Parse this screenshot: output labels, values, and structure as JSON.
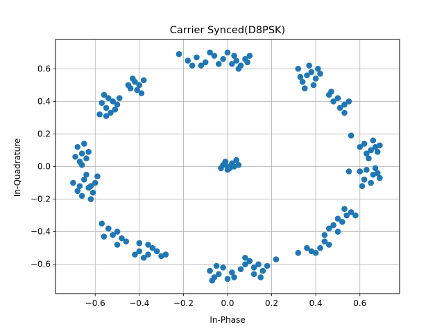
{
  "chart_data": {
    "type": "scatter",
    "title": "Carrier Synced(D8PSK)",
    "xlabel": "In-Phase",
    "ylabel": "In-Quadrature",
    "xlim": [
      -0.78,
      0.78
    ],
    "ylim": [
      -0.78,
      0.78
    ],
    "xticks": [
      -0.6,
      -0.4,
      -0.2,
      0.0,
      0.2,
      0.4,
      0.6
    ],
    "yticks": [
      -0.6,
      -0.4,
      -0.2,
      0.0,
      0.2,
      0.4,
      0.6
    ],
    "xtick_labels": [
      "−0.6",
      "−0.4",
      "−0.2",
      "0.0",
      "0.2",
      "0.4",
      "0.6"
    ],
    "ytick_labels": [
      "−0.6",
      "−0.4",
      "−0.2",
      "0.0",
      "0.2",
      "0.4",
      "0.6"
    ],
    "grid": true,
    "marker_color": "#1f77b4",
    "points": [
      [
        -0.68,
        0.12
      ],
      [
        -0.66,
        0.08
      ],
      [
        -0.64,
        0.05
      ],
      [
        -0.67,
        0.03
      ],
      [
        -0.65,
        0.14
      ],
      [
        -0.63,
        0.09
      ],
      [
        -0.69,
        0.06
      ],
      [
        -0.66,
        0.01
      ],
      [
        -0.65,
        -0.08
      ],
      [
        -0.62,
        -0.12
      ],
      [
        -0.68,
        -0.15
      ],
      [
        -0.6,
        -0.1
      ],
      [
        -0.64,
        -0.05
      ],
      [
        -0.66,
        -0.18
      ],
      [
        -0.61,
        -0.16
      ],
      [
        -0.7,
        -0.1
      ],
      [
        -0.63,
        -0.13
      ],
      [
        -0.59,
        -0.06
      ],
      [
        -0.67,
        -0.12
      ],
      [
        -0.62,
        -0.2
      ],
      [
        -0.58,
        0.32
      ],
      [
        -0.55,
        0.36
      ],
      [
        -0.52,
        0.4
      ],
      [
        -0.56,
        0.44
      ],
      [
        -0.5,
        0.38
      ],
      [
        -0.53,
        0.33
      ],
      [
        -0.57,
        0.39
      ],
      [
        -0.54,
        0.42
      ],
      [
        -0.51,
        0.35
      ],
      [
        -0.49,
        0.42
      ],
      [
        -0.55,
        0.31
      ],
      [
        -0.44,
        0.48
      ],
      [
        -0.42,
        0.52
      ],
      [
        -0.4,
        0.5
      ],
      [
        -0.38,
        0.53
      ],
      [
        -0.45,
        0.5
      ],
      [
        -0.41,
        0.47
      ],
      [
        -0.39,
        0.45
      ],
      [
        -0.43,
        0.54
      ],
      [
        -0.18,
        0.65
      ],
      [
        -0.14,
        0.67
      ],
      [
        -0.1,
        0.64
      ],
      [
        -0.06,
        0.68
      ],
      [
        -0.02,
        0.66
      ],
      [
        -0.12,
        0.62
      ],
      [
        -0.08,
        0.7
      ],
      [
        -0.04,
        0.63
      ],
      [
        -0.16,
        0.62
      ],
      [
        0.0,
        0.7
      ],
      [
        -0.22,
        0.69
      ],
      [
        0.04,
        0.65
      ],
      [
        0.08,
        0.66
      ],
      [
        0.06,
        0.62
      ],
      [
        0.1,
        0.68
      ],
      [
        0.02,
        0.63
      ],
      [
        0.05,
        0.6
      ],
      [
        0.09,
        0.64
      ],
      [
        0.03,
        0.68
      ],
      [
        0.32,
        0.6
      ],
      [
        0.36,
        0.56
      ],
      [
        0.4,
        0.54
      ],
      [
        0.34,
        0.52
      ],
      [
        0.38,
        0.58
      ],
      [
        0.42,
        0.57
      ],
      [
        0.35,
        0.48
      ],
      [
        0.39,
        0.5
      ],
      [
        0.33,
        0.55
      ],
      [
        0.41,
        0.6
      ],
      [
        0.37,
        0.62
      ],
      [
        0.46,
        0.44
      ],
      [
        0.5,
        0.42
      ],
      [
        0.53,
        0.38
      ],
      [
        0.48,
        0.4
      ],
      [
        0.55,
        0.4
      ],
      [
        0.51,
        0.36
      ],
      [
        0.47,
        0.46
      ],
      [
        0.53,
        0.33
      ],
      [
        0.62,
        0.14
      ],
      [
        0.65,
        0.1
      ],
      [
        0.67,
        0.12
      ],
      [
        0.63,
        0.08
      ],
      [
        0.66,
        0.16
      ],
      [
        0.6,
        0.12
      ],
      [
        0.68,
        0.09
      ],
      [
        0.64,
        0.05
      ],
      [
        0.56,
        0.19
      ],
      [
        0.69,
        0.13
      ],
      [
        0.63,
        -0.02
      ],
      [
        0.66,
        -0.05
      ],
      [
        0.62,
        -0.08
      ],
      [
        0.68,
        -0.04
      ],
      [
        0.6,
        -0.03
      ],
      [
        0.65,
        -0.1
      ],
      [
        0.67,
        -0.01
      ],
      [
        0.61,
        -0.12
      ],
      [
        0.55,
        -0.03
      ],
      [
        0.69,
        -0.07
      ],
      [
        0.5,
        -0.32
      ],
      [
        0.54,
        -0.3
      ],
      [
        0.48,
        -0.36
      ],
      [
        0.52,
        -0.34
      ],
      [
        0.56,
        -0.28
      ],
      [
        0.46,
        -0.38
      ],
      [
        0.5,
        -0.4
      ],
      [
        0.53,
        -0.26
      ],
      [
        0.58,
        -0.3
      ],
      [
        0.44,
        -0.42
      ],
      [
        0.38,
        -0.52
      ],
      [
        0.42,
        -0.5
      ],
      [
        0.46,
        -0.48
      ],
      [
        0.4,
        -0.53
      ],
      [
        0.44,
        -0.46
      ],
      [
        0.36,
        -0.5
      ],
      [
        0.32,
        -0.53
      ],
      [
        0.08,
        -0.6
      ],
      [
        0.12,
        -0.62
      ],
      [
        0.16,
        -0.64
      ],
      [
        0.1,
        -0.58
      ],
      [
        0.14,
        -0.6
      ],
      [
        0.06,
        -0.63
      ],
      [
        0.18,
        -0.61
      ],
      [
        0.12,
        -0.66
      ],
      [
        0.08,
        -0.56
      ],
      [
        0.22,
        -0.57
      ],
      [
        0.15,
        -0.68
      ],
      [
        -0.08,
        -0.64
      ],
      [
        -0.04,
        -0.66
      ],
      [
        -0.02,
        -0.62
      ],
      [
        0.02,
        -0.65
      ],
      [
        -0.06,
        -0.68
      ],
      [
        0.0,
        -0.69
      ],
      [
        -0.05,
        -0.61
      ],
      [
        -0.07,
        -0.7
      ],
      [
        0.03,
        -0.68
      ],
      [
        -0.4,
        -0.52
      ],
      [
        -0.36,
        -0.54
      ],
      [
        -0.34,
        -0.5
      ],
      [
        -0.38,
        -0.56
      ],
      [
        -0.32,
        -0.52
      ],
      [
        -0.42,
        -0.54
      ],
      [
        -0.36,
        -0.48
      ],
      [
        -0.3,
        -0.55
      ],
      [
        -0.4,
        -0.47
      ],
      [
        -0.28,
        -0.54
      ],
      [
        -0.52,
        -0.42
      ],
      [
        -0.48,
        -0.44
      ],
      [
        -0.5,
        -0.4
      ],
      [
        -0.54,
        -0.38
      ],
      [
        -0.46,
        -0.46
      ],
      [
        -0.5,
        -0.48
      ],
      [
        -0.56,
        -0.43
      ],
      [
        -0.57,
        -0.35
      ],
      [
        -0.02,
        0.01
      ],
      [
        0.0,
        -0.02
      ],
      [
        0.02,
        0.02
      ],
      [
        -0.01,
        0.03
      ],
      [
        0.03,
        0.0
      ],
      [
        0.01,
        -0.01
      ],
      [
        -0.03,
        -0.01
      ],
      [
        0.05,
        0.01
      ],
      [
        0.04,
        0.04
      ],
      [
        0.0,
        0.0
      ]
    ]
  }
}
